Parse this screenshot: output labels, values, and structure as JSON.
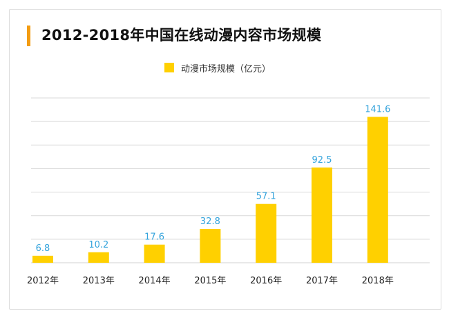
{
  "colors": {
    "accent": "#f39c12",
    "bar": "#ffd000",
    "value_label": "#33a3dc",
    "grid": "#d9d9d9",
    "axis_text": "#222222"
  },
  "chart_data": {
    "type": "bar",
    "title": "2012-2018年中国在线动漫内容市场规模",
    "categories": [
      "2012年",
      "2013年",
      "2014年",
      "2015年",
      "2016年",
      "2017年",
      "2018年"
    ],
    "series": [
      {
        "name": "动漫市场规模（亿元）",
        "values": [
          6.8,
          10.2,
          17.6,
          32.8,
          57.1,
          92.5,
          141.6
        ]
      }
    ],
    "ylim": [
      0,
      160
    ],
    "grid": true,
    "legend": "top-center",
    "data_labels": true
  }
}
